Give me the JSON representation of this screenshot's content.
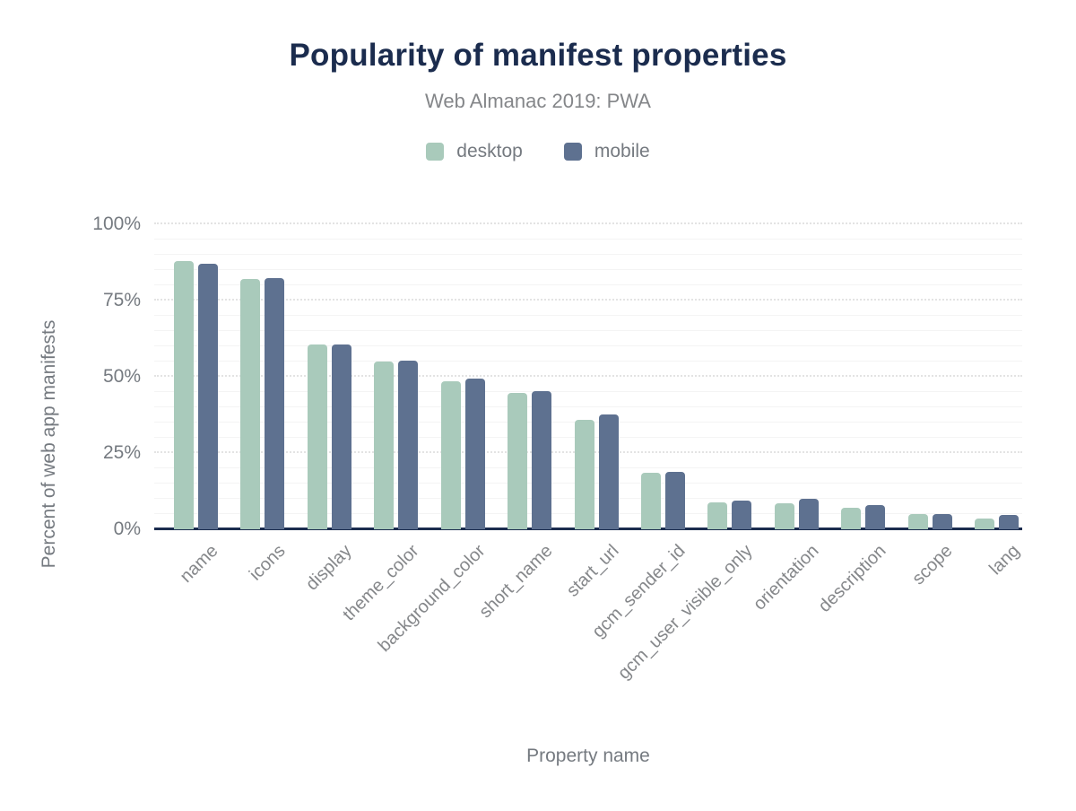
{
  "chart_data": {
    "type": "bar",
    "title": "Popularity of manifest properties",
    "subtitle": "Web Almanac 2019: PWA",
    "xlabel": "Property name",
    "ylabel": "Percent of web app manifests",
    "ylim": [
      0,
      100
    ],
    "yticks": [
      0,
      25,
      50,
      75,
      100
    ],
    "ytick_suffix": "%",
    "grid": "horizontal",
    "grid_major_step": 25,
    "grid_minor_step": 5,
    "legend_position": "top",
    "categories": [
      "name",
      "icons",
      "display",
      "theme_color",
      "background_color",
      "short_name",
      "start_url",
      "gcm_sender_id",
      "gcm_user_visible_only",
      "orientation",
      "description",
      "scope",
      "lang"
    ],
    "series": [
      {
        "name": "desktop",
        "color": "#a9cabb",
        "values": [
          88,
          82,
          60.5,
          55,
          48.6,
          44.7,
          36,
          18.4,
          8.9,
          8.4,
          7.2,
          4.9,
          3.4
        ]
      },
      {
        "name": "mobile",
        "color": "#5e7190",
        "values": [
          87,
          82.5,
          60.5,
          55.3,
          49.4,
          45.2,
          37.6,
          18.9,
          9.5,
          10.1,
          7.9,
          4.9,
          4.8
        ]
      }
    ]
  },
  "colors": {
    "title": "#1b2c4e",
    "muted_text": "#757a80",
    "axis_line": "#1b2c4e",
    "grid_major": "#e3e3e3",
    "grid_minor": "#f4f4f4",
    "background": "#ffffff"
  }
}
